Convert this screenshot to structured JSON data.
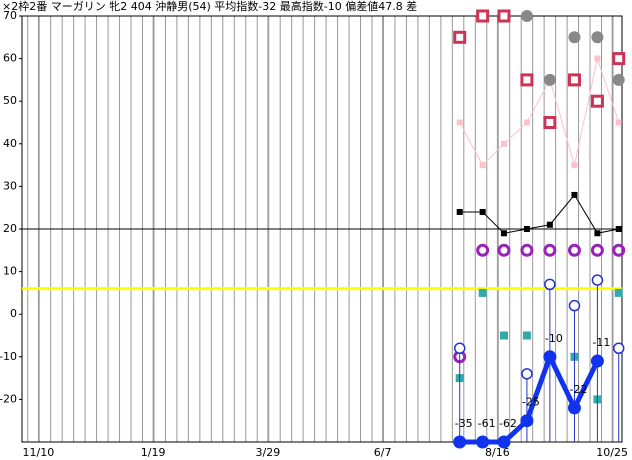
{
  "chart_data": {
    "type": "line",
    "title": "×2枠2番 マーガリン 牝2 404 沖静男(54) 平均指数-32 最高指数-10 偏差値47.8 差",
    "x": [
      257,
      271,
      284,
      298,
      312,
      327,
      341,
      354
    ],
    "xlim": [
      -10,
      356
    ],
    "xticks": [
      {
        "value": 0,
        "label": "11/10"
      },
      {
        "value": 70,
        "label": "1/19"
      },
      {
        "value": 140,
        "label": "3/29"
      },
      {
        "value": 210,
        "label": "6/7"
      },
      {
        "value": 280,
        "label": "8/16"
      },
      {
        "value": 350,
        "label": "10/25"
      }
    ],
    "ylim": [
      -30,
      70
    ],
    "yticks": [
      70,
      60,
      50,
      40,
      30,
      20,
      10,
      0,
      -10,
      -20
    ],
    "hlines": [
      {
        "value": 20,
        "color": "#000000"
      },
      {
        "value": 6,
        "color": "#ffff00"
      }
    ],
    "series": [
      {
        "color": "#ffc0cb",
        "marker": "square",
        "line": true,
        "values": [
          45,
          35,
          40,
          45,
          55,
          35,
          60,
          45
        ]
      },
      {
        "color": "#000000",
        "marker": "square",
        "line": true,
        "values": [
          24,
          24,
          19,
          20,
          21,
          28,
          19,
          20
        ]
      },
      {
        "color": "#cc3355",
        "marker": "square-hollow",
        "line": false,
        "values": [
          65,
          70,
          70,
          55,
          45,
          55,
          50,
          60
        ]
      },
      {
        "color": "#888888",
        "marker": "circle",
        "line": false,
        "values": [
          null,
          null,
          null,
          70,
          55,
          65,
          65,
          55
        ]
      },
      {
        "color": "#9922bb",
        "marker": "circle-hollow",
        "line": false,
        "values": [
          -10,
          15,
          15,
          15,
          15,
          15,
          15,
          15
        ]
      },
      {
        "color": "#33aaaa",
        "marker": "square",
        "line": false,
        "values": [
          -15,
          5,
          -5,
          -5,
          -10,
          -10,
          -20,
          5
        ]
      },
      {
        "color": "#2233cc",
        "marker": "circle-hollow-stem",
        "line": false,
        "values": [
          -8,
          null,
          null,
          -14,
          7,
          2,
          8,
          -8
        ]
      },
      {
        "color": "#1133ee",
        "marker": "circle-big",
        "line": true,
        "data_labels": true,
        "values": [
          -35,
          -61,
          -62,
          -25,
          -10,
          -22,
          -11,
          null
        ]
      }
    ]
  }
}
